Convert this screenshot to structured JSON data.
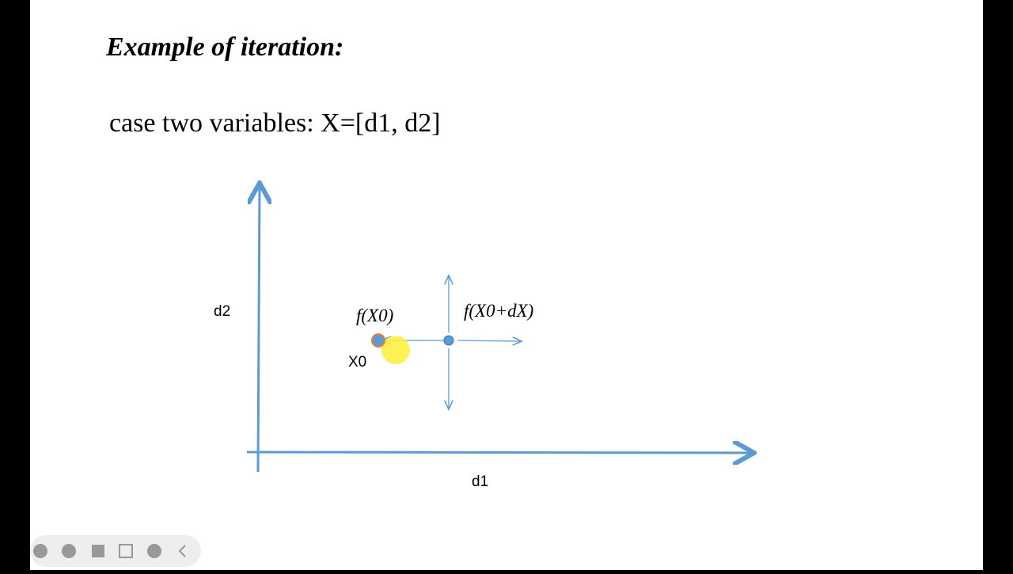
{
  "slide": {
    "title": "Example of iteration:",
    "subtitle": "case two variables: X=[d1,  d2]",
    "diagram": {
      "y_axis_label": "d2",
      "x_axis_label": "d1",
      "point_label": "X0",
      "f_x0": "f(X0)",
      "f_x0_dx": "f(X0+dX)"
    }
  }
}
